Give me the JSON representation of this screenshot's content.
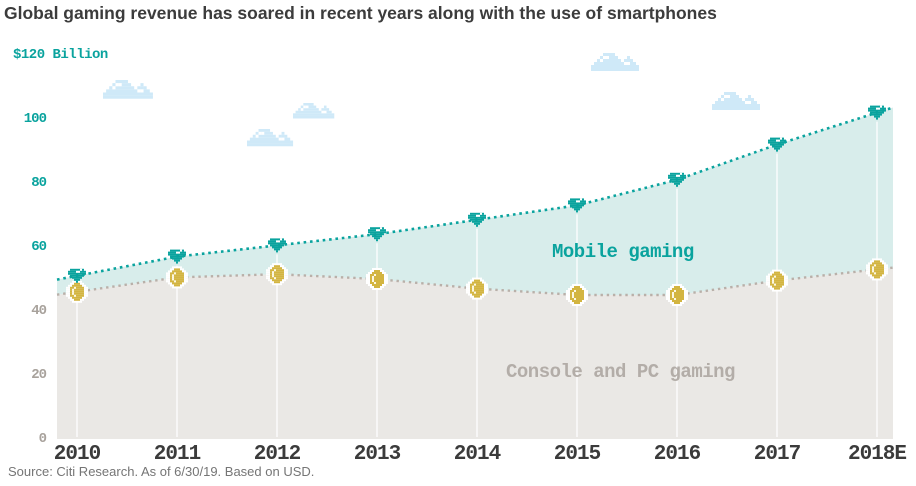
{
  "title": "Global gaming revenue has soared in recent years along with the use of smartphones",
  "source": "Source: Citi Research. As of 6/30/19. Based on USD.",
  "y_axis": {
    "unit_label": "$120 Billion",
    "ticks": [
      {
        "label": "100",
        "value": 100,
        "color": "#0aa39e"
      },
      {
        "label": "80",
        "value": 80,
        "color": "#0aa39e"
      },
      {
        "label": "60",
        "value": 60,
        "color": "#0aa39e"
      },
      {
        "label": "40",
        "value": 40,
        "color": "#a8a29c"
      },
      {
        "label": "20",
        "value": 20,
        "color": "#a8a29c"
      },
      {
        "label": "0",
        "value": 0,
        "color": "#a8a29c"
      }
    ]
  },
  "chart_data": {
    "type": "area",
    "title": "Global gaming revenue has soared in recent years along with the use of smartphones",
    "unit": "USD billions",
    "categories": [
      "2010",
      "2011",
      "2012",
      "2013",
      "2014",
      "2015",
      "2016",
      "2017",
      "2018E"
    ],
    "series": [
      {
        "name": "Mobile gaming",
        "note": "upper dotted line = total incl. mobile; teal band between lines is mobile gaming",
        "values": [
          51,
          57,
          60.5,
          64,
          68.5,
          73,
          81,
          92,
          102
        ],
        "line_color": "#0aa39e",
        "fill_color": "#d8edeb",
        "marker": "gem-icon"
      },
      {
        "name": "Console and PC gaming",
        "values": [
          46,
          50.5,
          51.5,
          50,
          47,
          45,
          45,
          49.5,
          53
        ],
        "line_color": "#b9b0a9",
        "fill_color": "#eae8e5",
        "marker": "coin-icon"
      }
    ],
    "ylim": [
      0,
      120
    ],
    "grid": "vertical white lines at each year inside filled areas",
    "legend_position": "inline labels on areas",
    "line_style": "dotted"
  },
  "icons": {
    "gem": {
      "name": "gem-icon",
      "color": "#0aa39e",
      "sparkle": "#ffffff"
    },
    "coin": {
      "name": "coin-icon",
      "color": "#d3b541",
      "outline": "#ffffff",
      "shine": "#fdf8e3"
    },
    "cloud": {
      "name": "cloud-icon",
      "color": "#cfe9f8",
      "highlight": "#ffffff",
      "count": 5
    }
  },
  "colors": {
    "accent_teal": "#0aa39e",
    "teal_fill": "#d8edeb",
    "gray_fill": "#eae8e5",
    "gray_line": "#b9b0a9",
    "title_text": "#3c3c3c",
    "axis_gray": "#a8a29c",
    "source_text": "#757575",
    "cloud_blue": "#cfe9f8",
    "coin_gold": "#d3b541"
  }
}
